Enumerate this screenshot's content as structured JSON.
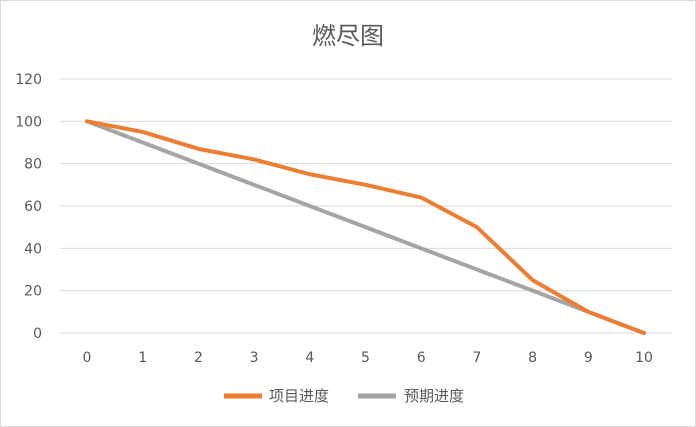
{
  "chart_data": {
    "type": "line",
    "title": "燃尽图",
    "xlabel": "",
    "ylabel": "",
    "x": [
      0,
      1,
      2,
      3,
      4,
      5,
      6,
      7,
      8,
      9,
      10
    ],
    "x_tick_labels": [
      "0",
      "1",
      "2",
      "3",
      "4",
      "5",
      "6",
      "7",
      "8",
      "9",
      "10"
    ],
    "y_tick_labels": [
      "120",
      "100",
      "80",
      "60",
      "40",
      "20",
      "0"
    ],
    "ylim": [
      0,
      120
    ],
    "y_ticks": [
      0,
      20,
      40,
      60,
      80,
      100,
      120
    ],
    "grid": true,
    "legend_position": "bottom",
    "series": [
      {
        "name": "项目进度",
        "color": "#ed7d31",
        "values": [
          100,
          95,
          87,
          82,
          75,
          70,
          64,
          50,
          25,
          10,
          0
        ]
      },
      {
        "name": "预期进度",
        "color": "#a5a5a5",
        "values": [
          100,
          90,
          80,
          70,
          60,
          50,
          40,
          30,
          20,
          10,
          0
        ]
      }
    ]
  }
}
